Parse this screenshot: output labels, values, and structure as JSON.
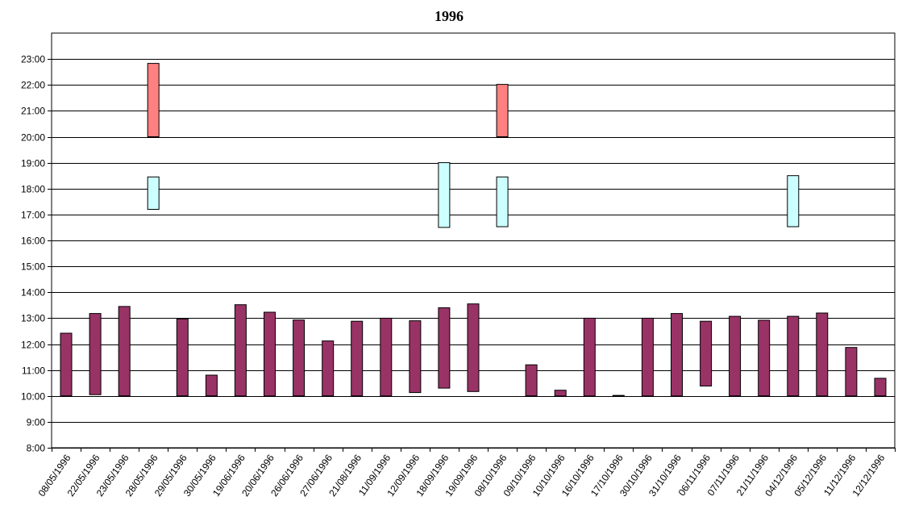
{
  "chart_data": {
    "type": "bar",
    "title": "1996",
    "xlabel": "",
    "ylabel": "",
    "y_axis": {
      "min_hours": 8,
      "max_hours": 24,
      "tick_labels": [
        "8:00",
        "9:00",
        "10:00",
        "11:00",
        "12:00",
        "13:00",
        "14:00",
        "15:00",
        "16:00",
        "17:00",
        "18:00",
        "19:00",
        "20:00",
        "21:00",
        "22:00",
        "23:00"
      ]
    },
    "grid": true,
    "categories": [
      "08/05/1996",
      "22/05/1996",
      "23/05/1996",
      "28/05/1996",
      "29/05/1996",
      "30/05/1996",
      "19/06/1996",
      "20/06/1996",
      "26/06/1996",
      "27/06/1996",
      "21/08/1996",
      "11/09/1996",
      "12/09/1996",
      "18/09/1996",
      "19/09/1996",
      "08/10/1996",
      "09/10/1996",
      "10/10/1996",
      "16/10/1996",
      "17/10/1996",
      "30/10/1996",
      "31/10/1996",
      "06/11/1996",
      "07/11/1996",
      "21/11/1996",
      "04/12/1996",
      "05/12/1996",
      "11/12/1996",
      "12/12/1996"
    ],
    "series": [
      {
        "color": "#993366",
        "ranges": [
          [
            10.0,
            12.42
          ],
          [
            10.05,
            13.18
          ],
          [
            10.0,
            13.45
          ],
          null,
          [
            10.0,
            12.97
          ],
          [
            10.0,
            10.8
          ],
          [
            10.0,
            13.52
          ],
          [
            10.0,
            13.23
          ],
          [
            10.0,
            12.93
          ],
          [
            10.0,
            12.12
          ],
          [
            10.0,
            12.88
          ],
          [
            10.0,
            13.0
          ],
          [
            10.13,
            12.9
          ],
          [
            10.3,
            13.4
          ],
          [
            10.17,
            13.55
          ],
          null,
          [
            10.0,
            11.2
          ],
          [
            10.0,
            10.22
          ],
          [
            10.0,
            13.0
          ],
          [
            10.0,
            10.02
          ],
          [
            10.0,
            13.0
          ],
          [
            10.0,
            13.18
          ],
          [
            10.38,
            12.88
          ],
          [
            10.0,
            13.07
          ],
          [
            10.0,
            12.92
          ],
          [
            10.0,
            13.07
          ],
          [
            10.0,
            13.2
          ],
          [
            10.0,
            11.87
          ],
          [
            10.0,
            10.68
          ]
        ]
      },
      {
        "color": "#ccffff",
        "ranges": [
          null,
          null,
          null,
          [
            17.2,
            18.45
          ],
          null,
          null,
          null,
          null,
          null,
          null,
          null,
          null,
          null,
          [
            16.5,
            19.0
          ],
          null,
          [
            16.53,
            18.45
          ],
          null,
          null,
          null,
          null,
          null,
          null,
          null,
          null,
          null,
          [
            16.53,
            18.5
          ],
          null,
          null,
          null
        ]
      },
      {
        "color": "#ff8080",
        "ranges": [
          null,
          null,
          null,
          [
            20.0,
            22.83
          ],
          null,
          null,
          null,
          null,
          null,
          null,
          null,
          null,
          null,
          null,
          null,
          [
            20.0,
            22.02
          ],
          null,
          null,
          null,
          null,
          null,
          null,
          null,
          null,
          null,
          null,
          null,
          null,
          null
        ]
      }
    ]
  }
}
